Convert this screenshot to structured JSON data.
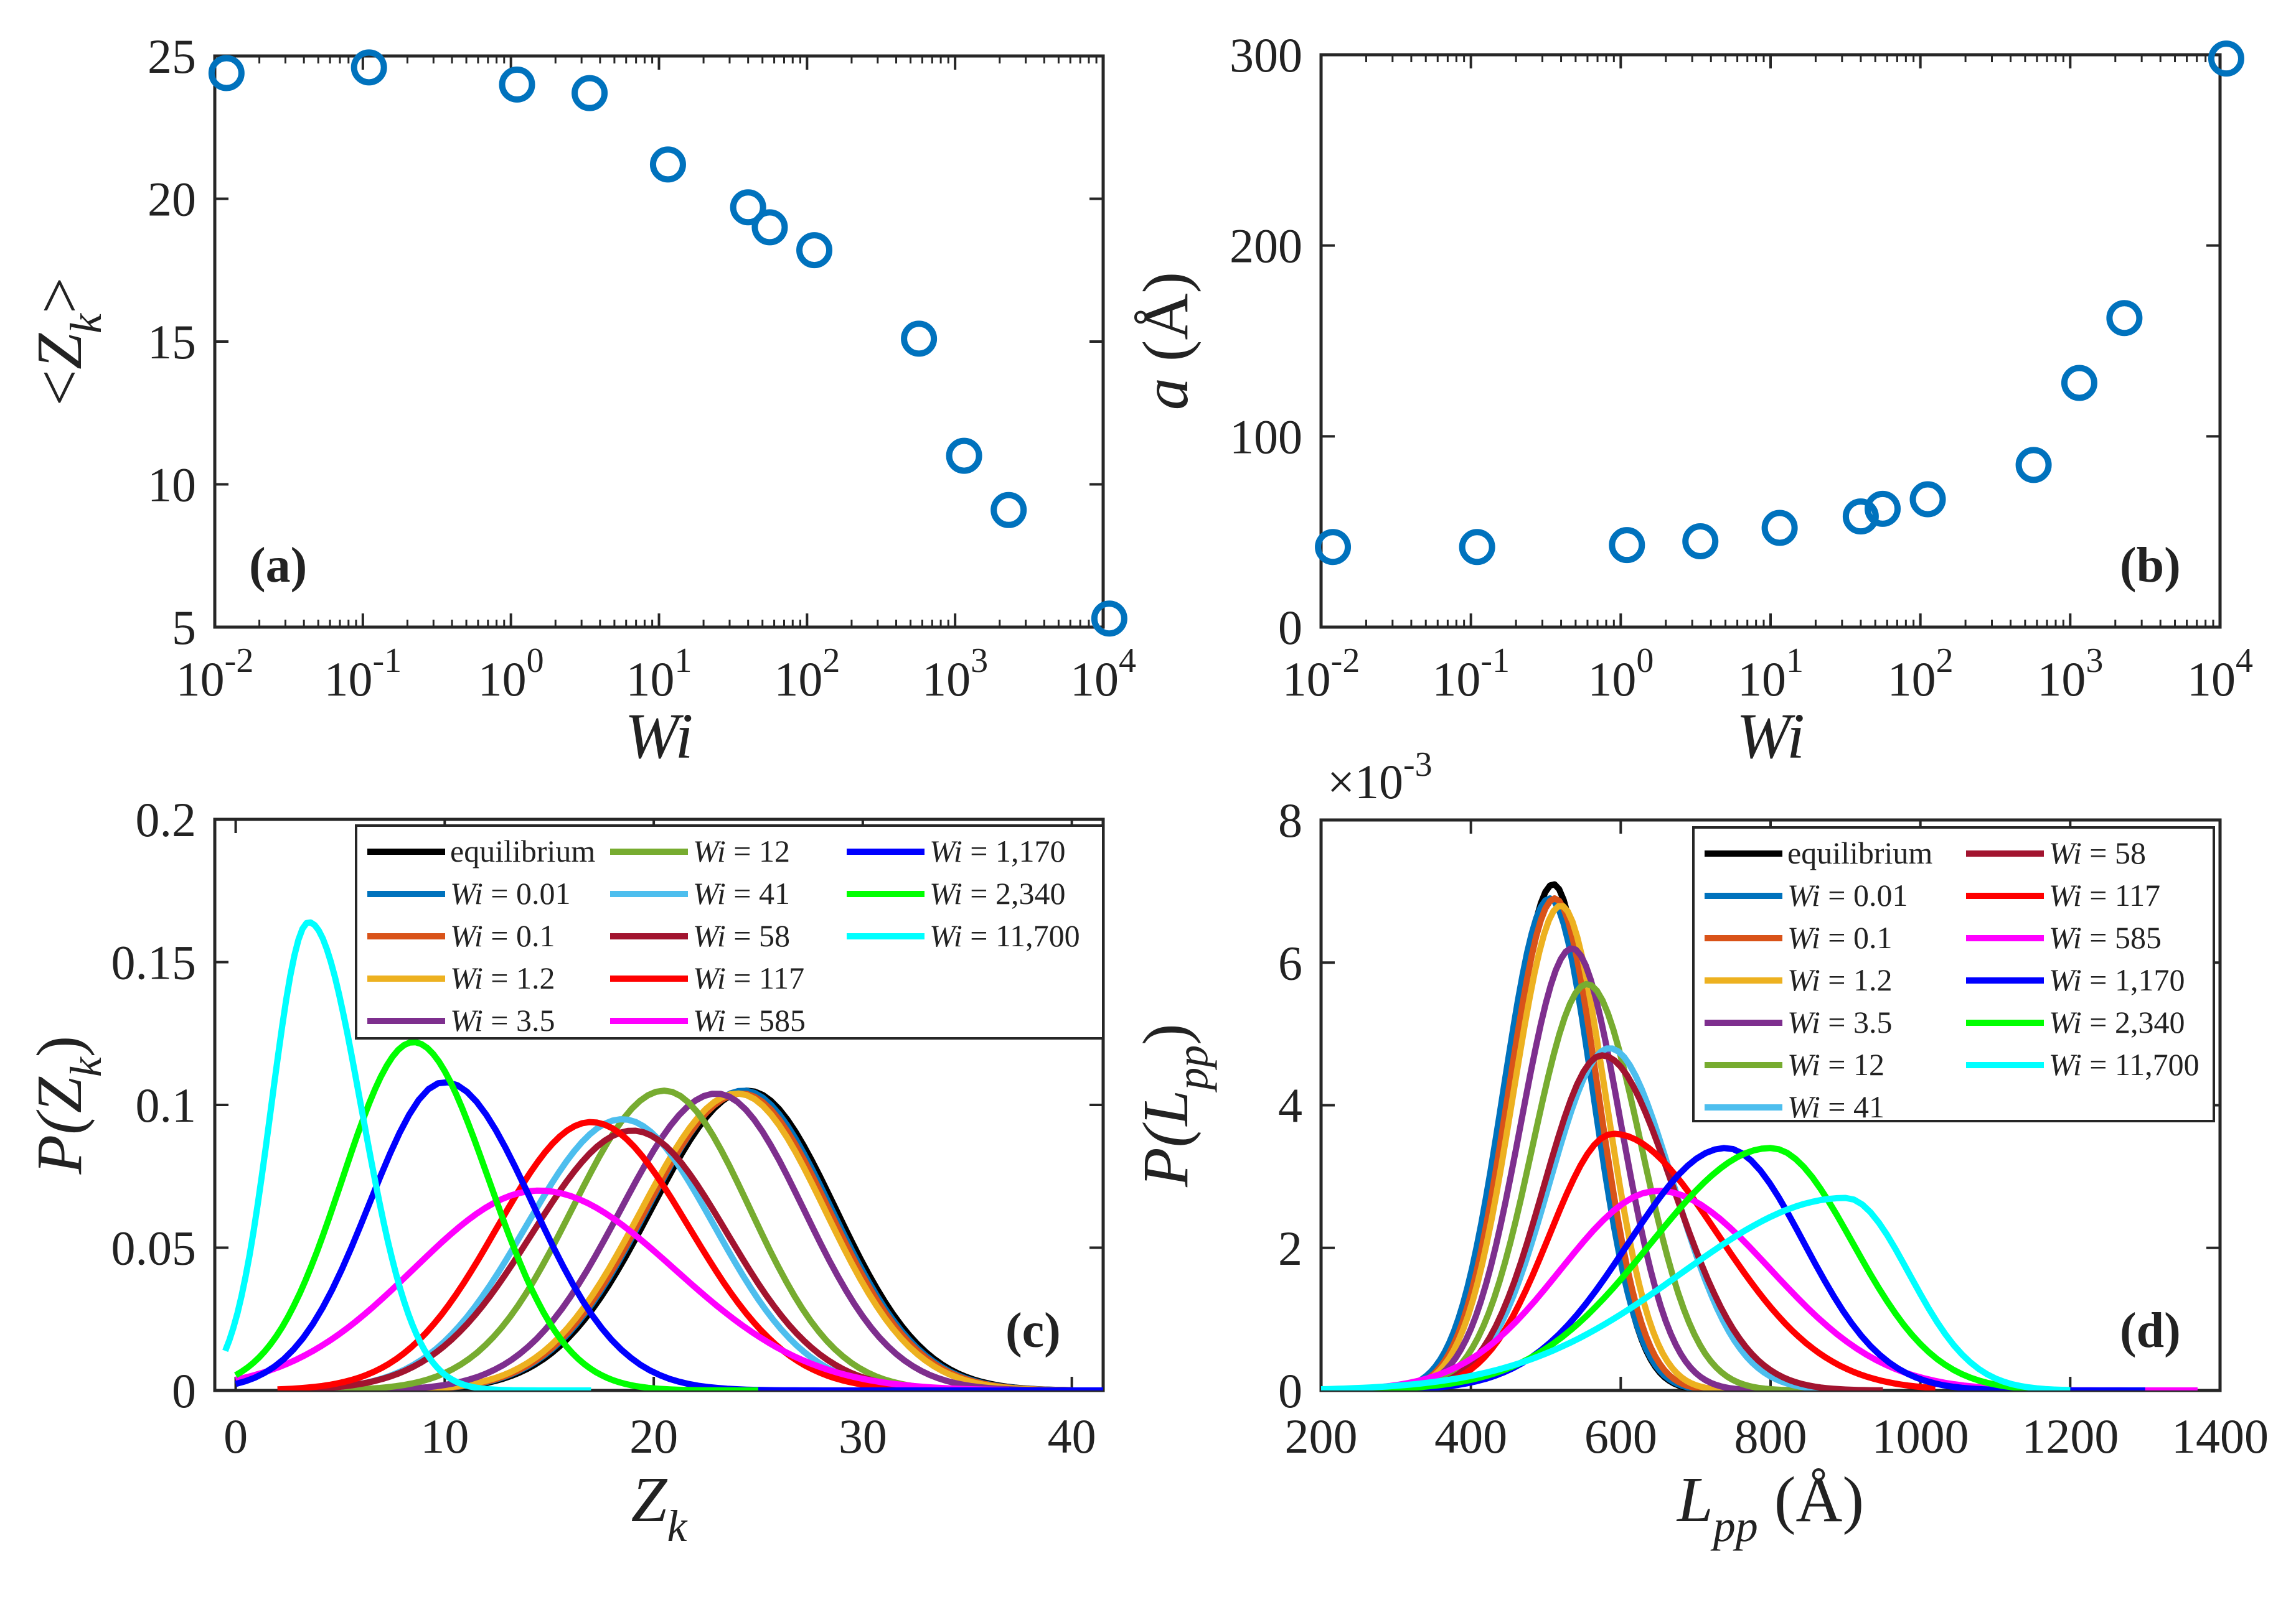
{
  "colors": {
    "marker": "#0072BD",
    "axis": "#262626"
  },
  "chart_data": [
    {
      "id": "a",
      "type": "scatter",
      "panel_label": "(a)",
      "xscale": "log",
      "xlim": [
        0.01,
        10000
      ],
      "ylim": [
        5,
        25
      ],
      "xticks": [
        0.01,
        0.1,
        1,
        10,
        100,
        1000,
        10000
      ],
      "xtick_labels": [
        [
          "10",
          "-2"
        ],
        [
          "10",
          "-1"
        ],
        [
          "10",
          "0"
        ],
        [
          "10",
          "1"
        ],
        [
          "10",
          "2"
        ],
        [
          "10",
          "3"
        ],
        [
          "10",
          "4"
        ]
      ],
      "yticks": [
        5,
        10,
        15,
        20,
        25
      ],
      "ytick_labels": [
        "5",
        "10",
        "15",
        "20",
        "25"
      ],
      "xlabel": "Wi",
      "ylabel": "<Z",
      "ylabel_sub": "k",
      "ylabel_suffix": ">",
      "x": [
        0.012,
        0.11,
        1.1,
        3.4,
        11.5,
        40,
        56,
        112,
        570,
        1150,
        2300,
        11000
      ],
      "y": [
        24.4,
        24.6,
        24.0,
        23.7,
        21.2,
        19.7,
        19.0,
        18.2,
        15.1,
        11.0,
        9.1,
        5.3
      ]
    },
    {
      "id": "b",
      "type": "scatter",
      "panel_label": "(b)",
      "xscale": "log",
      "xlim": [
        0.01,
        10000
      ],
      "ylim": [
        0,
        300
      ],
      "xticks": [
        0.01,
        0.1,
        1,
        10,
        100,
        1000,
        10000
      ],
      "xtick_labels": [
        [
          "10",
          "-2"
        ],
        [
          "10",
          "-1"
        ],
        [
          "10",
          "0"
        ],
        [
          "10",
          "1"
        ],
        [
          "10",
          "2"
        ],
        [
          "10",
          "3"
        ],
        [
          "10",
          "4"
        ]
      ],
      "yticks": [
        0,
        100,
        200,
        300
      ],
      "ytick_labels": [
        "0",
        "100",
        "200",
        "300"
      ],
      "xlabel": "Wi",
      "ylabel": "a",
      "ylabel_suffix": " (Å)",
      "x": [
        0.012,
        0.11,
        1.1,
        3.4,
        11.5,
        40,
        56,
        112,
        570,
        1150,
        2300,
        11000
      ],
      "y": [
        42,
        42,
        43,
        45,
        52,
        58,
        62,
        67,
        85,
        128,
        162,
        298
      ]
    },
    {
      "id": "c",
      "type": "line",
      "panel_label": "(c)",
      "xlim": [
        -1,
        41.5
      ],
      "ylim": [
        0,
        0.2
      ],
      "xticks": [
        0,
        10,
        20,
        30,
        40
      ],
      "xtick_labels": [
        "0",
        "10",
        "20",
        "30",
        "40"
      ],
      "yticks": [
        0,
        0.05,
        0.1,
        0.15,
        0.2
      ],
      "ytick_labels": [
        "0",
        "0.05",
        "0.1",
        "0.15",
        "0.2"
      ],
      "xlabel": "Z",
      "xlabel_sub": "k",
      "ylabel": "P(Z",
      "ylabel_sub": "k",
      "ylabel_suffix": ")",
      "legend_columns": 3,
      "legend_position": "top-right",
      "series": [
        {
          "name": "equilibrium",
          "prefix": "",
          "value": "",
          "color": "#000000",
          "peak_x": 24.5,
          "peak_y": 0.105,
          "sigma_left": 4.6,
          "sigma_right": 4.2,
          "x_min": 5,
          "x_max": 40
        },
        {
          "name": "Wi = 0.01",
          "prefix": "Wi",
          "value": " = 0.01",
          "color": "#0072BD",
          "peak_x": 24.3,
          "peak_y": 0.105,
          "sigma_left": 4.6,
          "sigma_right": 4.2,
          "x_min": 5,
          "x_max": 40
        },
        {
          "name": "Wi = 0.1",
          "prefix": "Wi",
          "value": " = 0.1",
          "color": "#D95319",
          "peak_x": 24.2,
          "peak_y": 0.104,
          "sigma_left": 4.6,
          "sigma_right": 4.2,
          "x_min": 5,
          "x_max": 40
        },
        {
          "name": "Wi = 1.2",
          "prefix": "Wi",
          "value": " = 1.2",
          "color": "#EDB120",
          "peak_x": 24.0,
          "peak_y": 0.104,
          "sigma_left": 4.6,
          "sigma_right": 4.2,
          "x_min": 5,
          "x_max": 40
        },
        {
          "name": "Wi = 3.5",
          "prefix": "Wi",
          "value": " = 3.5",
          "color": "#7E2F8E",
          "peak_x": 23.0,
          "peak_y": 0.104,
          "sigma_left": 4.6,
          "sigma_right": 4.2,
          "x_min": 4,
          "x_max": 40
        },
        {
          "name": "Wi = 12",
          "prefix": "Wi",
          "value": " = 12",
          "color": "#77AC30",
          "peak_x": 20.5,
          "peak_y": 0.105,
          "sigma_left": 4.4,
          "sigma_right": 4.1,
          "x_min": 3,
          "x_max": 38
        },
        {
          "name": "Wi = 41",
          "prefix": "Wi",
          "value": " = 41",
          "color": "#4DBEEE",
          "peak_x": 18.5,
          "peak_y": 0.095,
          "sigma_left": 4.6,
          "sigma_right": 4.4,
          "x_min": 3,
          "x_max": 36
        },
        {
          "name": "Wi = 58",
          "prefix": "Wi",
          "value": " = 58",
          "color": "#A2142F",
          "peak_x": 19.0,
          "peak_y": 0.091,
          "sigma_left": 4.8,
          "sigma_right": 4.5,
          "x_min": 3,
          "x_max": 36
        },
        {
          "name": "Wi = 117",
          "prefix": "Wi",
          "value": " = 117",
          "color": "#FF0000",
          "peak_x": 17.0,
          "peak_y": 0.094,
          "sigma_left": 4.5,
          "sigma_right": 4.7,
          "x_min": 2,
          "x_max": 34
        },
        {
          "name": "Wi = 585",
          "prefix": "Wi",
          "value": " = 585",
          "color": "#FF00FF",
          "peak_x": 14.5,
          "peak_y": 0.07,
          "sigma_left": 6.0,
          "sigma_right": 6.5,
          "x_min": 0,
          "x_max": 37
        },
        {
          "name": "Wi = 1,170",
          "prefix": "Wi",
          "value": " = 1,170",
          "color": "#0000FF",
          "peak_x": 10.0,
          "peak_y": 0.108,
          "sigma_left": 3.6,
          "sigma_right": 4.2,
          "x_min": 0,
          "x_max": 41.5
        },
        {
          "name": "Wi = 2,340",
          "prefix": "Wi",
          "value": " = 2,340",
          "color": "#00FF00",
          "peak_x": 8.5,
          "peak_y": 0.122,
          "sigma_left": 3.4,
          "sigma_right": 3.6,
          "x_min": 0,
          "x_max": 25
        },
        {
          "name": "Wi = 11,700",
          "prefix": "Wi",
          "value": " = 11,700",
          "color": "#00FFFF",
          "peak_x": 3.5,
          "peak_y": 0.164,
          "sigma_left": 1.8,
          "sigma_right": 2.5,
          "x_min": -0.5,
          "x_max": 17
        }
      ]
    },
    {
      "id": "d",
      "type": "line",
      "panel_label": "(d)",
      "xlim": [
        200,
        1400
      ],
      "ylim": [
        0,
        0.008
      ],
      "xticks": [
        200,
        400,
        600,
        800,
        1000,
        1200,
        1400
      ],
      "xtick_labels": [
        "200",
        "400",
        "600",
        "800",
        "1000",
        "1200",
        "1400"
      ],
      "yticks": [
        0,
        0.002,
        0.004,
        0.006,
        0.008
      ],
      "ytick_labels": [
        "0",
        "2",
        "4",
        "6",
        "8"
      ],
      "exponent_label": "×10",
      "exponent_power": "-3",
      "xlabel": "L",
      "xlabel_sub": "pp",
      "xlabel_suffix": " (Å)",
      "ylabel": "P(L",
      "ylabel_sub": "pp",
      "ylabel_suffix": ")",
      "legend_columns": 2,
      "legend_position": "top-right",
      "series": [
        {
          "name": "equilibrium",
          "prefix": "",
          "value": "",
          "color": "#000000",
          "peak_x": 510,
          "peak_y": 0.0071,
          "sigma_left": 60,
          "sigma_right": 55,
          "x_min": 200,
          "x_max": 750
        },
        {
          "name": "Wi = 0.01",
          "prefix": "Wi",
          "value": " = 0.01",
          "color": "#0072BD",
          "peak_x": 505,
          "peak_y": 0.0069,
          "sigma_left": 62,
          "sigma_right": 58,
          "x_min": 200,
          "x_max": 750
        },
        {
          "name": "Wi = 0.1",
          "prefix": "Wi",
          "value": " = 0.1",
          "color": "#D95319",
          "peak_x": 512,
          "peak_y": 0.0069,
          "sigma_left": 62,
          "sigma_right": 58,
          "x_min": 200,
          "x_max": 750
        },
        {
          "name": "Wi = 1.2",
          "prefix": "Wi",
          "value": " = 1.2",
          "color": "#EDB120",
          "peak_x": 520,
          "peak_y": 0.0068,
          "sigma_left": 64,
          "sigma_right": 60,
          "x_min": 200,
          "x_max": 770
        },
        {
          "name": "Wi = 3.5",
          "prefix": "Wi",
          "value": " = 3.5",
          "color": "#7E2F8E",
          "peak_x": 535,
          "peak_y": 0.0062,
          "sigma_left": 68,
          "sigma_right": 65,
          "x_min": 200,
          "x_max": 800
        },
        {
          "name": "Wi = 12",
          "prefix": "Wi",
          "value": " = 12",
          "color": "#77AC30",
          "peak_x": 555,
          "peak_y": 0.0057,
          "sigma_left": 72,
          "sigma_right": 72,
          "x_min": 200,
          "x_max": 850
        },
        {
          "name": "Wi = 41",
          "prefix": "Wi",
          "value": " = 41",
          "color": "#4DBEEE",
          "peak_x": 585,
          "peak_y": 0.0048,
          "sigma_left": 80,
          "sigma_right": 85,
          "x_min": 200,
          "x_max": 900
        },
        {
          "name": "Wi = 58",
          "prefix": "Wi",
          "value": " = 58",
          "color": "#A2142F",
          "peak_x": 575,
          "peak_y": 0.0047,
          "sigma_left": 78,
          "sigma_right": 95,
          "x_min": 200,
          "x_max": 950
        },
        {
          "name": "Wi = 117",
          "prefix": "Wi",
          "value": " = 117",
          "color": "#FF0000",
          "peak_x": 590,
          "peak_y": 0.0036,
          "sigma_left": 85,
          "sigma_right": 140,
          "x_min": 200,
          "x_max": 1020
        },
        {
          "name": "Wi = 585",
          "prefix": "Wi",
          "value": " = 585",
          "color": "#FF00FF",
          "peak_x": 650,
          "peak_y": 0.0028,
          "sigma_left": 130,
          "sigma_right": 150,
          "x_min": 200,
          "x_max": 1370
        },
        {
          "name": "Wi = 1,170",
          "prefix": "Wi",
          "value": " = 1,170",
          "color": "#0000FF",
          "peak_x": 740,
          "peak_y": 0.0034,
          "sigma_left": 130,
          "sigma_right": 105,
          "x_min": 200,
          "x_max": 1300
        },
        {
          "name": "Wi = 2,340",
          "prefix": "Wi",
          "value": " = 2,340",
          "color": "#00FF00",
          "peak_x": 800,
          "peak_y": 0.0034,
          "sigma_left": 160,
          "sigma_right": 110,
          "x_min": 200,
          "x_max": 1200
        },
        {
          "name": "Wi = 11,700",
          "prefix": "Wi",
          "value": " = 11,700",
          "color": "#00FFFF",
          "peak_x": 900,
          "peak_y": 0.0027,
          "sigma_left": 220,
          "sigma_right": 85,
          "x_min": 200,
          "x_max": 1200
        }
      ]
    }
  ]
}
